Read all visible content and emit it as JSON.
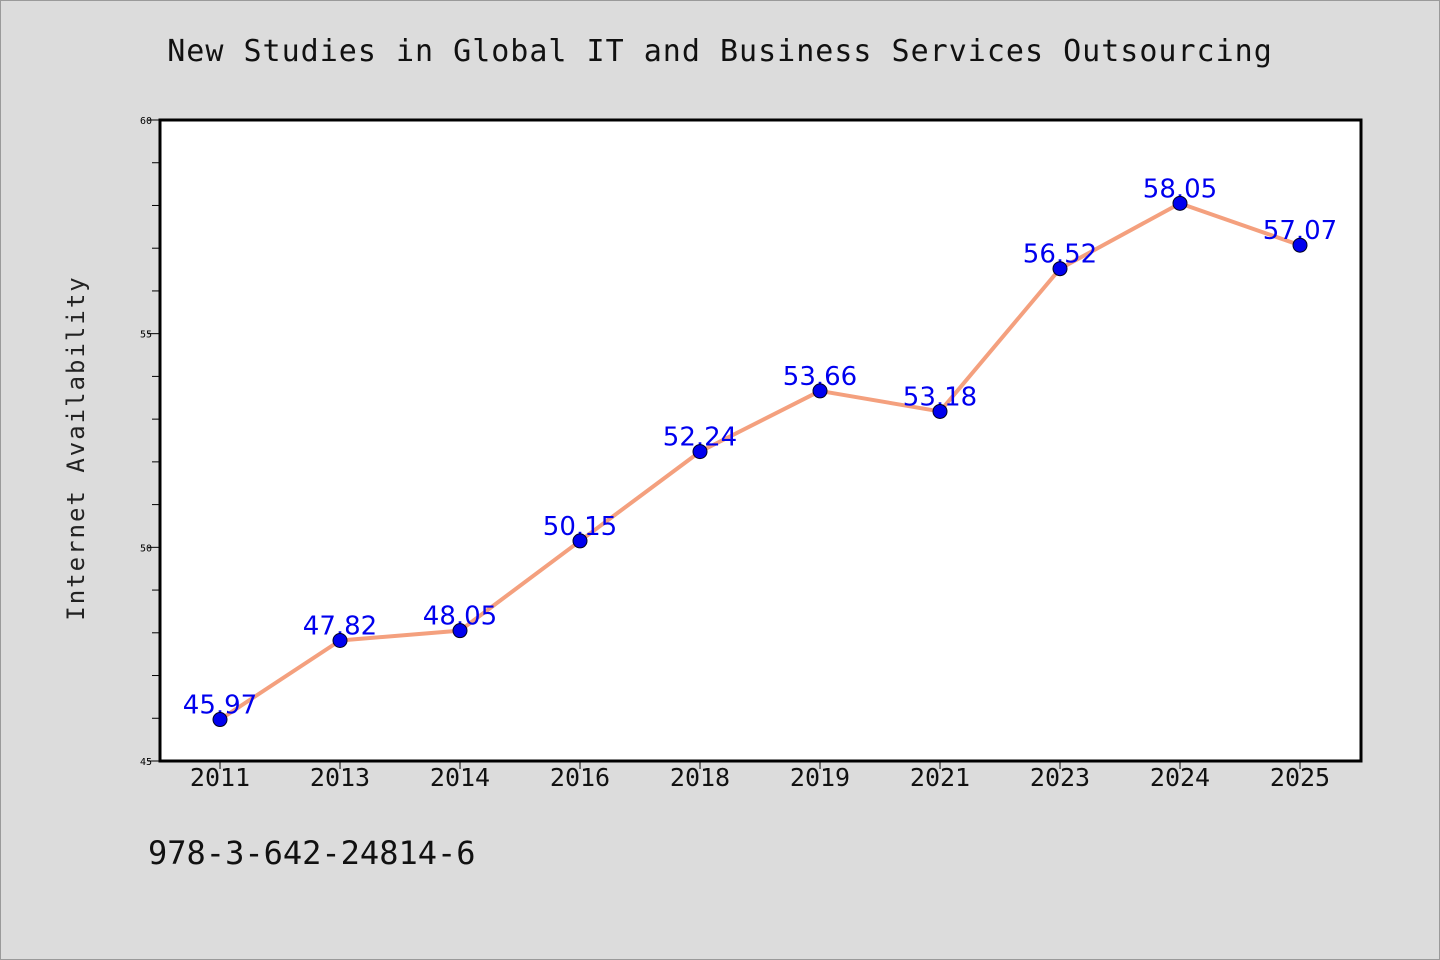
{
  "chart_data": {
    "type": "line",
    "title": "New Studies in Global IT and Business Services Outsourcing",
    "xlabel": "",
    "ylabel": "Internet Availability",
    "categories": [
      "2011",
      "2013",
      "2014",
      "2016",
      "2018",
      "2019",
      "2021",
      "2023",
      "2024",
      "2025"
    ],
    "series": [
      {
        "values": [
          45.97,
          47.82,
          48.05,
          50.15,
          52.24,
          53.66,
          53.18,
          56.52,
          58.05,
          57.07
        ],
        "value_labels": [
          "45.97",
          "47.82",
          "48.05",
          "50.15",
          "52.24",
          "53.66",
          "53.18",
          "56.52",
          "58.05",
          "57.07"
        ]
      }
    ],
    "ylim": [
      45,
      60
    ],
    "yticks": [
      "45",
      "50",
      "55",
      "60"
    ],
    "grid": false,
    "colors": {
      "line": "#f4a07e",
      "marker": "#0000ee",
      "label": "#0000ee",
      "background": "#dcdcdc",
      "plot_bg": "#ffffff"
    }
  },
  "footer": {
    "code": "978-3-642-24814-6"
  }
}
